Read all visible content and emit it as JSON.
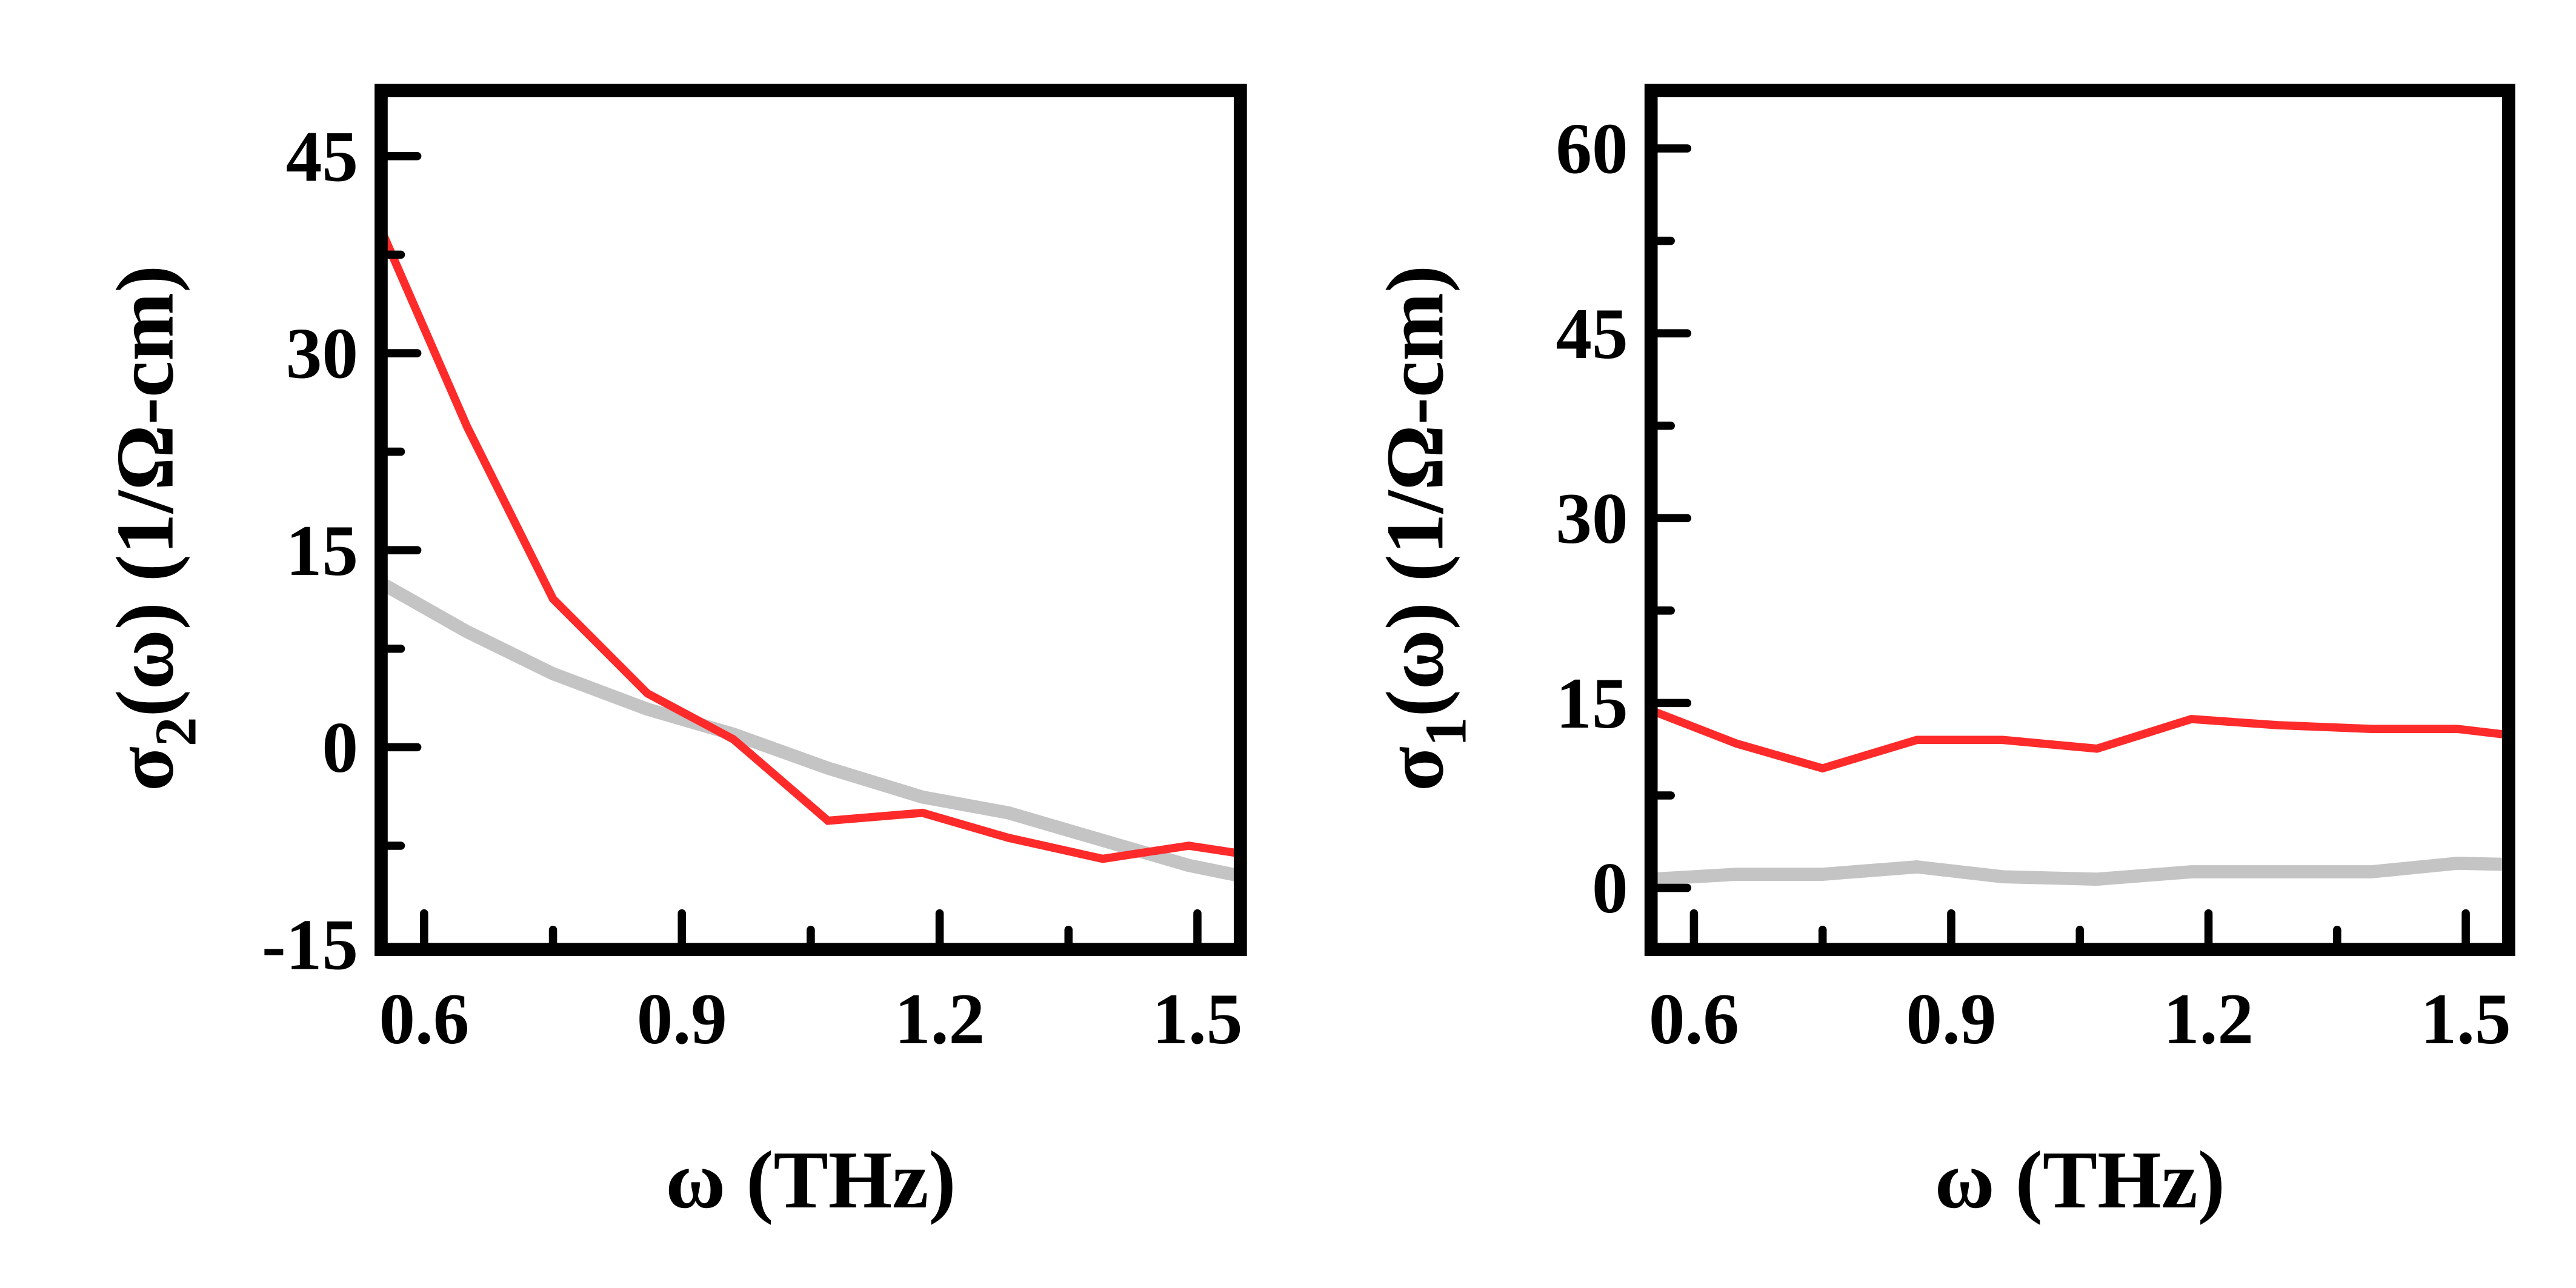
{
  "chart_data": [
    {
      "type": "line",
      "title": "",
      "xlabel": "ω (THz)",
      "ylabel": {
        "symbol": "σ",
        "subscript": "2",
        "rest": "(ω) (1/Ω-cm)"
      },
      "xlim": [
        0.55,
        1.55
      ],
      "ylim": [
        -15.4,
        50
      ],
      "xticks": [
        0.6,
        0.9,
        1.2,
        1.5
      ],
      "xtick_labels": [
        "0.6",
        "0.9",
        "1.2",
        "1.5"
      ],
      "yticks": [
        -15,
        0,
        15,
        30,
        45
      ],
      "ytick_labels": [
        "-15",
        "0",
        "15",
        "30",
        "45"
      ],
      "grid": false,
      "series": [
        {
          "name": "gray",
          "color": "#c4c4c4",
          "x": [
            0.55,
            0.65,
            0.75,
            0.86,
            0.96,
            1.07,
            1.18,
            1.28,
            1.39,
            1.49,
            1.55
          ],
          "y": [
            12.5,
            8.8,
            5.6,
            2.9,
            1.0,
            -1.6,
            -3.8,
            -5.0,
            -7.1,
            -9.0,
            -9.8
          ]
        },
        {
          "name": "red",
          "color": "#ff2a2a",
          "x": [
            0.55,
            0.65,
            0.75,
            0.86,
            0.96,
            1.07,
            1.18,
            1.28,
            1.39,
            1.49,
            1.55
          ],
          "y": [
            39.4,
            24.4,
            11.3,
            4.1,
            0.6,
            -5.6,
            -5.0,
            -6.9,
            -8.5,
            -7.5,
            -8.1
          ]
        }
      ]
    },
    {
      "type": "line",
      "title": "",
      "xlabel": "ω (THz)",
      "ylabel": {
        "symbol": "σ",
        "subscript": "1",
        "rest": "(ω) (1/Ω-cm)"
      },
      "xlim": [
        0.55,
        1.55
      ],
      "ylim": [
        -5,
        64.7
      ],
      "xticks": [
        0.6,
        0.9,
        1.2,
        1.5
      ],
      "xtick_labels": [
        "0.6",
        "0.9",
        "1.2",
        "1.5"
      ],
      "yticks": [
        0,
        15,
        30,
        45,
        60
      ],
      "ytick_labels": [
        "0",
        "15",
        "30",
        "45",
        "60"
      ],
      "grid": false,
      "series": [
        {
          "name": "gray",
          "color": "#c4c4c4",
          "x": [
            0.55,
            0.65,
            0.75,
            0.86,
            0.96,
            1.07,
            1.18,
            1.28,
            1.39,
            1.49,
            1.55
          ],
          "y": [
            0.7,
            1.1,
            1.1,
            1.7,
            0.9,
            0.7,
            1.3,
            1.3,
            1.3,
            2.0,
            1.9
          ]
        },
        {
          "name": "red",
          "color": "#ff2a2a",
          "x": [
            0.55,
            0.65,
            0.75,
            0.86,
            0.96,
            1.07,
            1.18,
            1.28,
            1.39,
            1.49,
            1.55
          ],
          "y": [
            14.4,
            11.7,
            9.7,
            12.0,
            12.0,
            11.3,
            13.7,
            13.2,
            12.9,
            12.9,
            12.4
          ]
        }
      ]
    }
  ]
}
